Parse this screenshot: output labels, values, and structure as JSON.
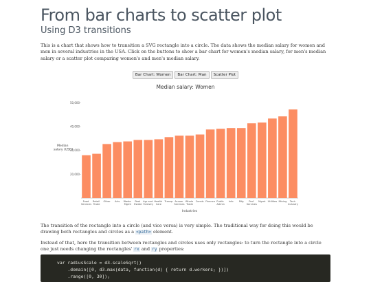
{
  "header": {
    "title": "From bar charts to scatter plot",
    "subtitle": "Using D3 transitions"
  },
  "intro": "This is a chart that shows how to transition a SVG rectangle into a circle. The data shows the median salary for women and men in several industries in the USA. Click on the buttons to show a bar chart for women's median salary, for men's median salary or a scatter plot comparing women's and men's median salary.",
  "buttons": [
    "Bar Chart: Women",
    "Bar Chart: Man",
    "Scatter Plot"
  ],
  "chart_data": {
    "type": "bar",
    "title": "Median salary: Women",
    "y_label": "Median salary (USD)",
    "x_label": "Industries",
    "categories": [
      "Food Services",
      "Retail Trade",
      "Other",
      "Arts",
      "Waste Mgmt",
      "Real Estate",
      "Agr and Forestry",
      "Health Care",
      "Transp.",
      "Accom Services",
      "Whole Trade",
      "Constr.",
      "Finance",
      "Public Admin",
      "Info",
      "Mfg",
      "Prof Services",
      "Mgmt",
      "Utilities",
      "Mining",
      "Tech Industry"
    ],
    "values": [
      28000,
      28600,
      32700,
      33500,
      33800,
      34400,
      34400,
      34700,
      35600,
      36200,
      36200,
      36700,
      38800,
      39100,
      39400,
      39400,
      41400,
      41700,
      43400,
      44300,
      47200
    ],
    "color": "#fc8d62",
    "ylim": [
      10000,
      51000
    ],
    "yticks": [
      {
        "value": 20000,
        "label": "20,000"
      },
      {
        "value": 30000,
        "label": "30,000"
      },
      {
        "value": 40000,
        "label": "40,000"
      },
      {
        "value": 50000,
        "label": "50,000"
      }
    ],
    "grid": false
  },
  "paragraph2": [
    "The transition of the rectangle into a circle (and vice versa) is very simple. The traditional way for doing this would be drawing both rectangles and circles as a ",
    "<path>",
    " element."
  ],
  "paragraph3": [
    "Instead of that, here the transition between rectangles and circles uses only rectangles: to turn the rectangle into a circle one just needs changing the rectangles' ",
    "rx",
    " and ",
    "ry",
    " properties:"
  ],
  "code": [
    "var radiusScale = d3.scaleSqrt()",
    "    .domain([0, d3.max(data, function(d) { return d.workers; })])",
    "    .range([0, 30]);"
  ]
}
